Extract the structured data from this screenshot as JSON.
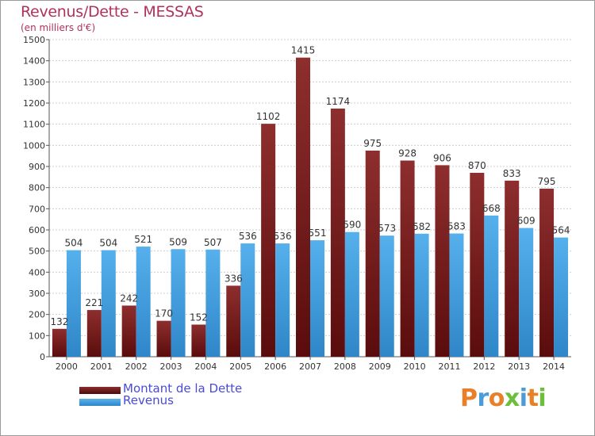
{
  "header": {
    "title": "Revenus/Dette - MESSAS",
    "subtitle": "(en milliers d'€)"
  },
  "legend": {
    "dette_label": "Montant de la Dette",
    "revenus_label": "Revenus"
  },
  "logo": {
    "letters": [
      "P",
      "r",
      "o",
      "x",
      "i",
      "t",
      "i"
    ]
  },
  "colors": {
    "dette": "#7a1f1f",
    "revenus": "#4aa3e0",
    "title": "#b0325a",
    "legend_text": "#4a4ad8"
  },
  "chart_data": {
    "type": "bar",
    "title": "Revenus/Dette - MESSAS",
    "subtitle": "(en milliers d'€)",
    "categories": [
      "2000",
      "2001",
      "2002",
      "2003",
      "2004",
      "2005",
      "2006",
      "2007",
      "2008",
      "2009",
      "2010",
      "2011",
      "2012",
      "2013",
      "2014"
    ],
    "series": [
      {
        "name": "Montant de la Dette",
        "values": [
          132,
          221,
          242,
          170,
          152,
          336,
          1102,
          1415,
          1174,
          975,
          928,
          906,
          870,
          833,
          795
        ]
      },
      {
        "name": "Revenus",
        "values": [
          504,
          504,
          521,
          509,
          507,
          536,
          536,
          551,
          590,
          573,
          582,
          583,
          668,
          609,
          564
        ]
      }
    ],
    "ylim": [
      0,
      1500
    ],
    "yticks": [
      0,
      100,
      200,
      300,
      400,
      500,
      600,
      700,
      800,
      900,
      1000,
      1100,
      1200,
      1300,
      1400,
      1500
    ],
    "grid": true,
    "legend_position": "bottom-left"
  }
}
